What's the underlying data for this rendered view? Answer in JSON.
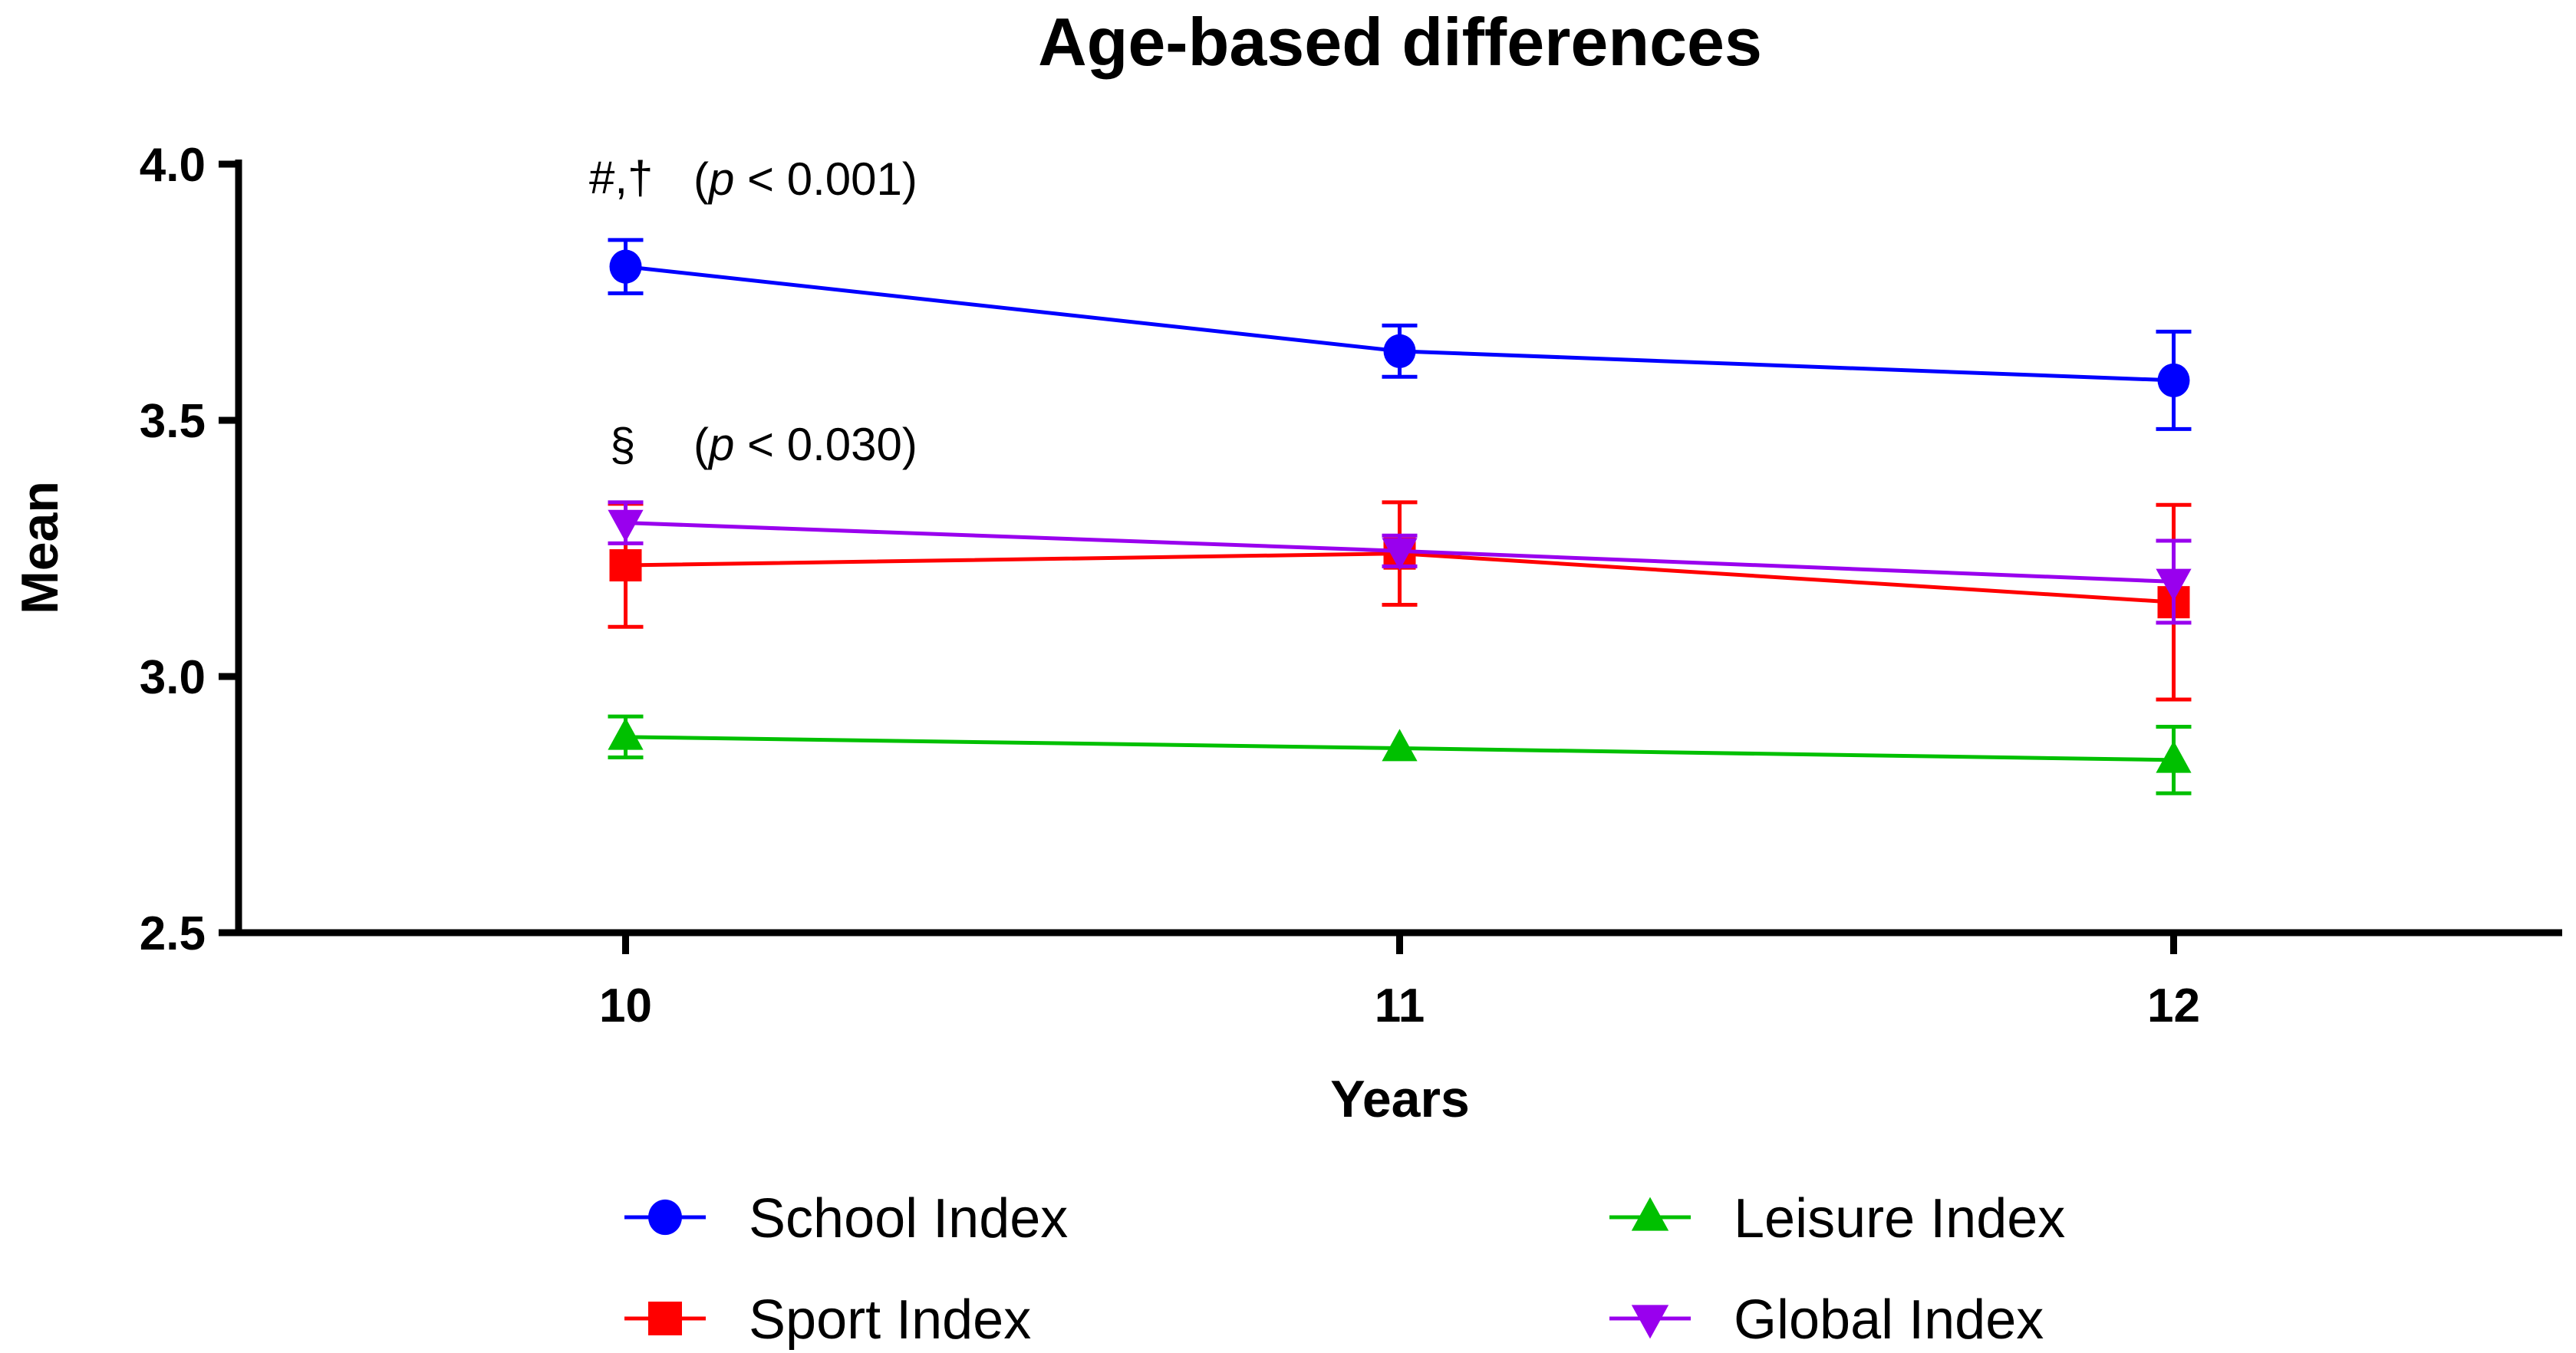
{
  "chart_data": {
    "type": "line",
    "title": "Age-based differences",
    "xlabel": "Years",
    "ylabel": "Mean",
    "x": [
      10,
      11,
      12
    ],
    "xticks": [
      "10",
      "11",
      "12"
    ],
    "xlim": [
      9.5,
      12.5
    ],
    "ylim": [
      2.5,
      4.0
    ],
    "yticks": [
      "2.5",
      "3.0",
      "3.5",
      "4.0"
    ],
    "grid": false,
    "legend_position": "bottom",
    "series": [
      {
        "name": "School Index",
        "color": "#0000ff",
        "marker": "circle",
        "values": [
          3.8,
          3.635,
          3.578
        ],
        "errors": [
          0.052,
          0.05,
          0.095
        ]
      },
      {
        "name": "Sport Index",
        "color": "#ff0000",
        "marker": "square",
        "values": [
          3.217,
          3.24,
          3.145
        ],
        "errors": [
          0.12,
          0.1,
          0.19
        ]
      },
      {
        "name": "Leisure Index",
        "color": "#00c000",
        "marker": "triangle-up",
        "values": [
          2.882,
          2.86,
          2.837
        ],
        "errors": [
          0.04,
          0.0,
          0.065
        ]
      },
      {
        "name": "Global Index",
        "color": "#9900ee",
        "marker": "triangle-down",
        "values": [
          3.3,
          3.245,
          3.185
        ],
        "errors": [
          0.04,
          0.03,
          0.08
        ]
      }
    ],
    "annotations": [
      {
        "symbol": "#,†",
        "p_prefix": "(",
        "p_italic": "p",
        "p_text": " < 0.001)"
      },
      {
        "symbol": "§",
        "p_prefix": "(",
        "p_italic": "p",
        "p_text": " < 0.030)"
      }
    ]
  }
}
